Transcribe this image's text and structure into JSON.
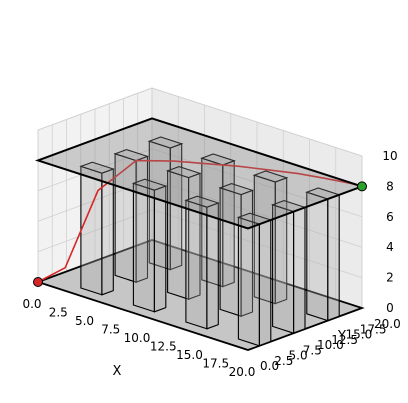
{
  "chart_data": {
    "type": "3d-bar-obstacles-with-path",
    "xlabel": "X",
    "ylabel": "Y",
    "zlabel": "",
    "xlim": [
      0,
      20
    ],
    "ylim": [
      0,
      20
    ],
    "zlim": [
      0,
      10
    ],
    "x_ticks": [
      "0.0",
      "2.5",
      "5.0",
      "7.5",
      "10.0",
      "12.5",
      "15.0",
      "17.5",
      "20.0"
    ],
    "y_ticks": [
      "0.0",
      "2.5",
      "5.0",
      "7.5",
      "10.0",
      "12.5",
      "15.0",
      "17.5",
      "20.0"
    ],
    "z_ticks": [
      "0",
      "2",
      "4",
      "6",
      "8",
      "10"
    ],
    "grid": true,
    "colors": {
      "obstacle_fill": "#b0b0b0",
      "obstacle_edge": "#000000",
      "path": "#d62728",
      "start_marker": "#d62728",
      "goal_marker": "#2ca02c",
      "plane": "#808080"
    },
    "plane_z": 8,
    "obstacles": [
      {
        "x": 3,
        "y": 2,
        "dx": 2,
        "dy": 2,
        "height": 8
      },
      {
        "x": 3,
        "y": 8,
        "dx": 2,
        "dy": 2,
        "height": 8
      },
      {
        "x": 3,
        "y": 14,
        "dx": 2,
        "dy": 2,
        "height": 8
      },
      {
        "x": 8,
        "y": 2,
        "dx": 2,
        "dy": 2,
        "height": 8
      },
      {
        "x": 8,
        "y": 8,
        "dx": 2,
        "dy": 2,
        "height": 8
      },
      {
        "x": 8,
        "y": 14,
        "dx": 2,
        "dy": 2,
        "height": 8
      },
      {
        "x": 13,
        "y": 2,
        "dx": 2,
        "dy": 2,
        "height": 8
      },
      {
        "x": 13,
        "y": 8,
        "dx": 2,
        "dy": 2,
        "height": 8
      },
      {
        "x": 13,
        "y": 14,
        "dx": 2,
        "dy": 2,
        "height": 8
      },
      {
        "x": 18,
        "y": 2,
        "dx": 2,
        "dy": 2,
        "height": 8
      },
      {
        "x": 18,
        "y": 8,
        "dx": 2,
        "dy": 2,
        "height": 8
      },
      {
        "x": 18,
        "y": 14,
        "dx": 2,
        "dy": 2,
        "height": 8
      }
    ],
    "path": {
      "x": [
        0,
        1.5,
        3,
        5,
        7,
        9,
        11,
        13,
        15,
        17,
        19,
        20
      ],
      "y": [
        0,
        2,
        5,
        8,
        11,
        13,
        15,
        16.5,
        18,
        19,
        19.8,
        20
      ],
      "z": [
        0,
        1,
        6,
        8,
        8,
        8,
        8,
        8,
        8,
        8,
        8,
        8
      ]
    },
    "start": {
      "x": 0,
      "y": 0,
      "z": 0
    },
    "goal": {
      "x": 20,
      "y": 20,
      "z": 8
    }
  }
}
